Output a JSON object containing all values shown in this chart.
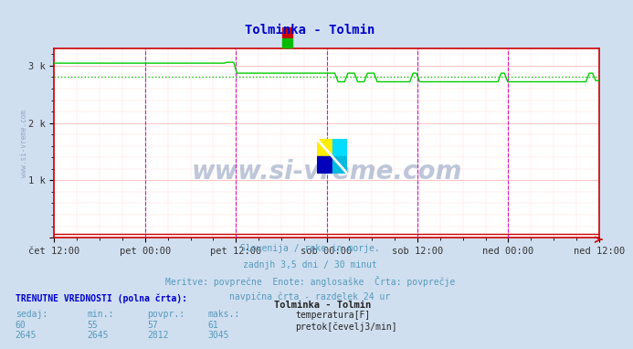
{
  "title": "Tolminka - Tolmin",
  "title_color": "#0000cc",
  "bg_color": "#d0dff0",
  "plot_bg_color": "#ffffff",
  "grid_color_major": "#ffaaaa",
  "grid_color_minor": "#ffdddd",
  "x_labels": [
    "čet 12:00",
    "pet 00:00",
    "pet 12:00",
    "sob 00:00",
    "sob 12:00",
    "ned 00:00",
    "ned 12:00"
  ],
  "y_ticks": [
    0,
    1000,
    2000,
    3000
  ],
  "y_tick_labels": [
    "",
    "1 k",
    "2 k",
    "3 k"
  ],
  "ylim": [
    0,
    3300
  ],
  "subtitle_lines": [
    "Slovenija / reke in morje.",
    "zadnjh 3,5 dni / 30 minut",
    "Meritve: povprečne  Enote: anglosaške  Črta: povprečje",
    "navpična črta - razdelek 24 ur"
  ],
  "subtitle_color": "#5599bb",
  "watermark": "www.si-vreme.com",
  "watermark_color": "#8899bb",
  "flow_line_color": "#00cc00",
  "flow_avg_color": "#00cc00",
  "temp_line_color": "#cc0000",
  "vline_color": "#cc00cc",
  "bottom_bold": "TRENUTNE VREDNOSTI (polna črta):",
  "bottom_bold_color": "#0000cc",
  "header_color": "#5599bb",
  "table_headers": [
    "sedaj:",
    "min.:",
    "povpr.:",
    "maks.:"
  ],
  "temp_row": [
    "60",
    "55",
    "57",
    "61"
  ],
  "flow_row": [
    "2645",
    "2645",
    "2812",
    "3045"
  ],
  "station_label": "Tolminka - Tolmin",
  "temp_label": "temperatura[F]",
  "flow_label": "pretok[čevelj3/min]",
  "temp_box_color": "#cc0000",
  "flow_box_color": "#00bb00",
  "avg_flow": 2812,
  "n_points": 168
}
